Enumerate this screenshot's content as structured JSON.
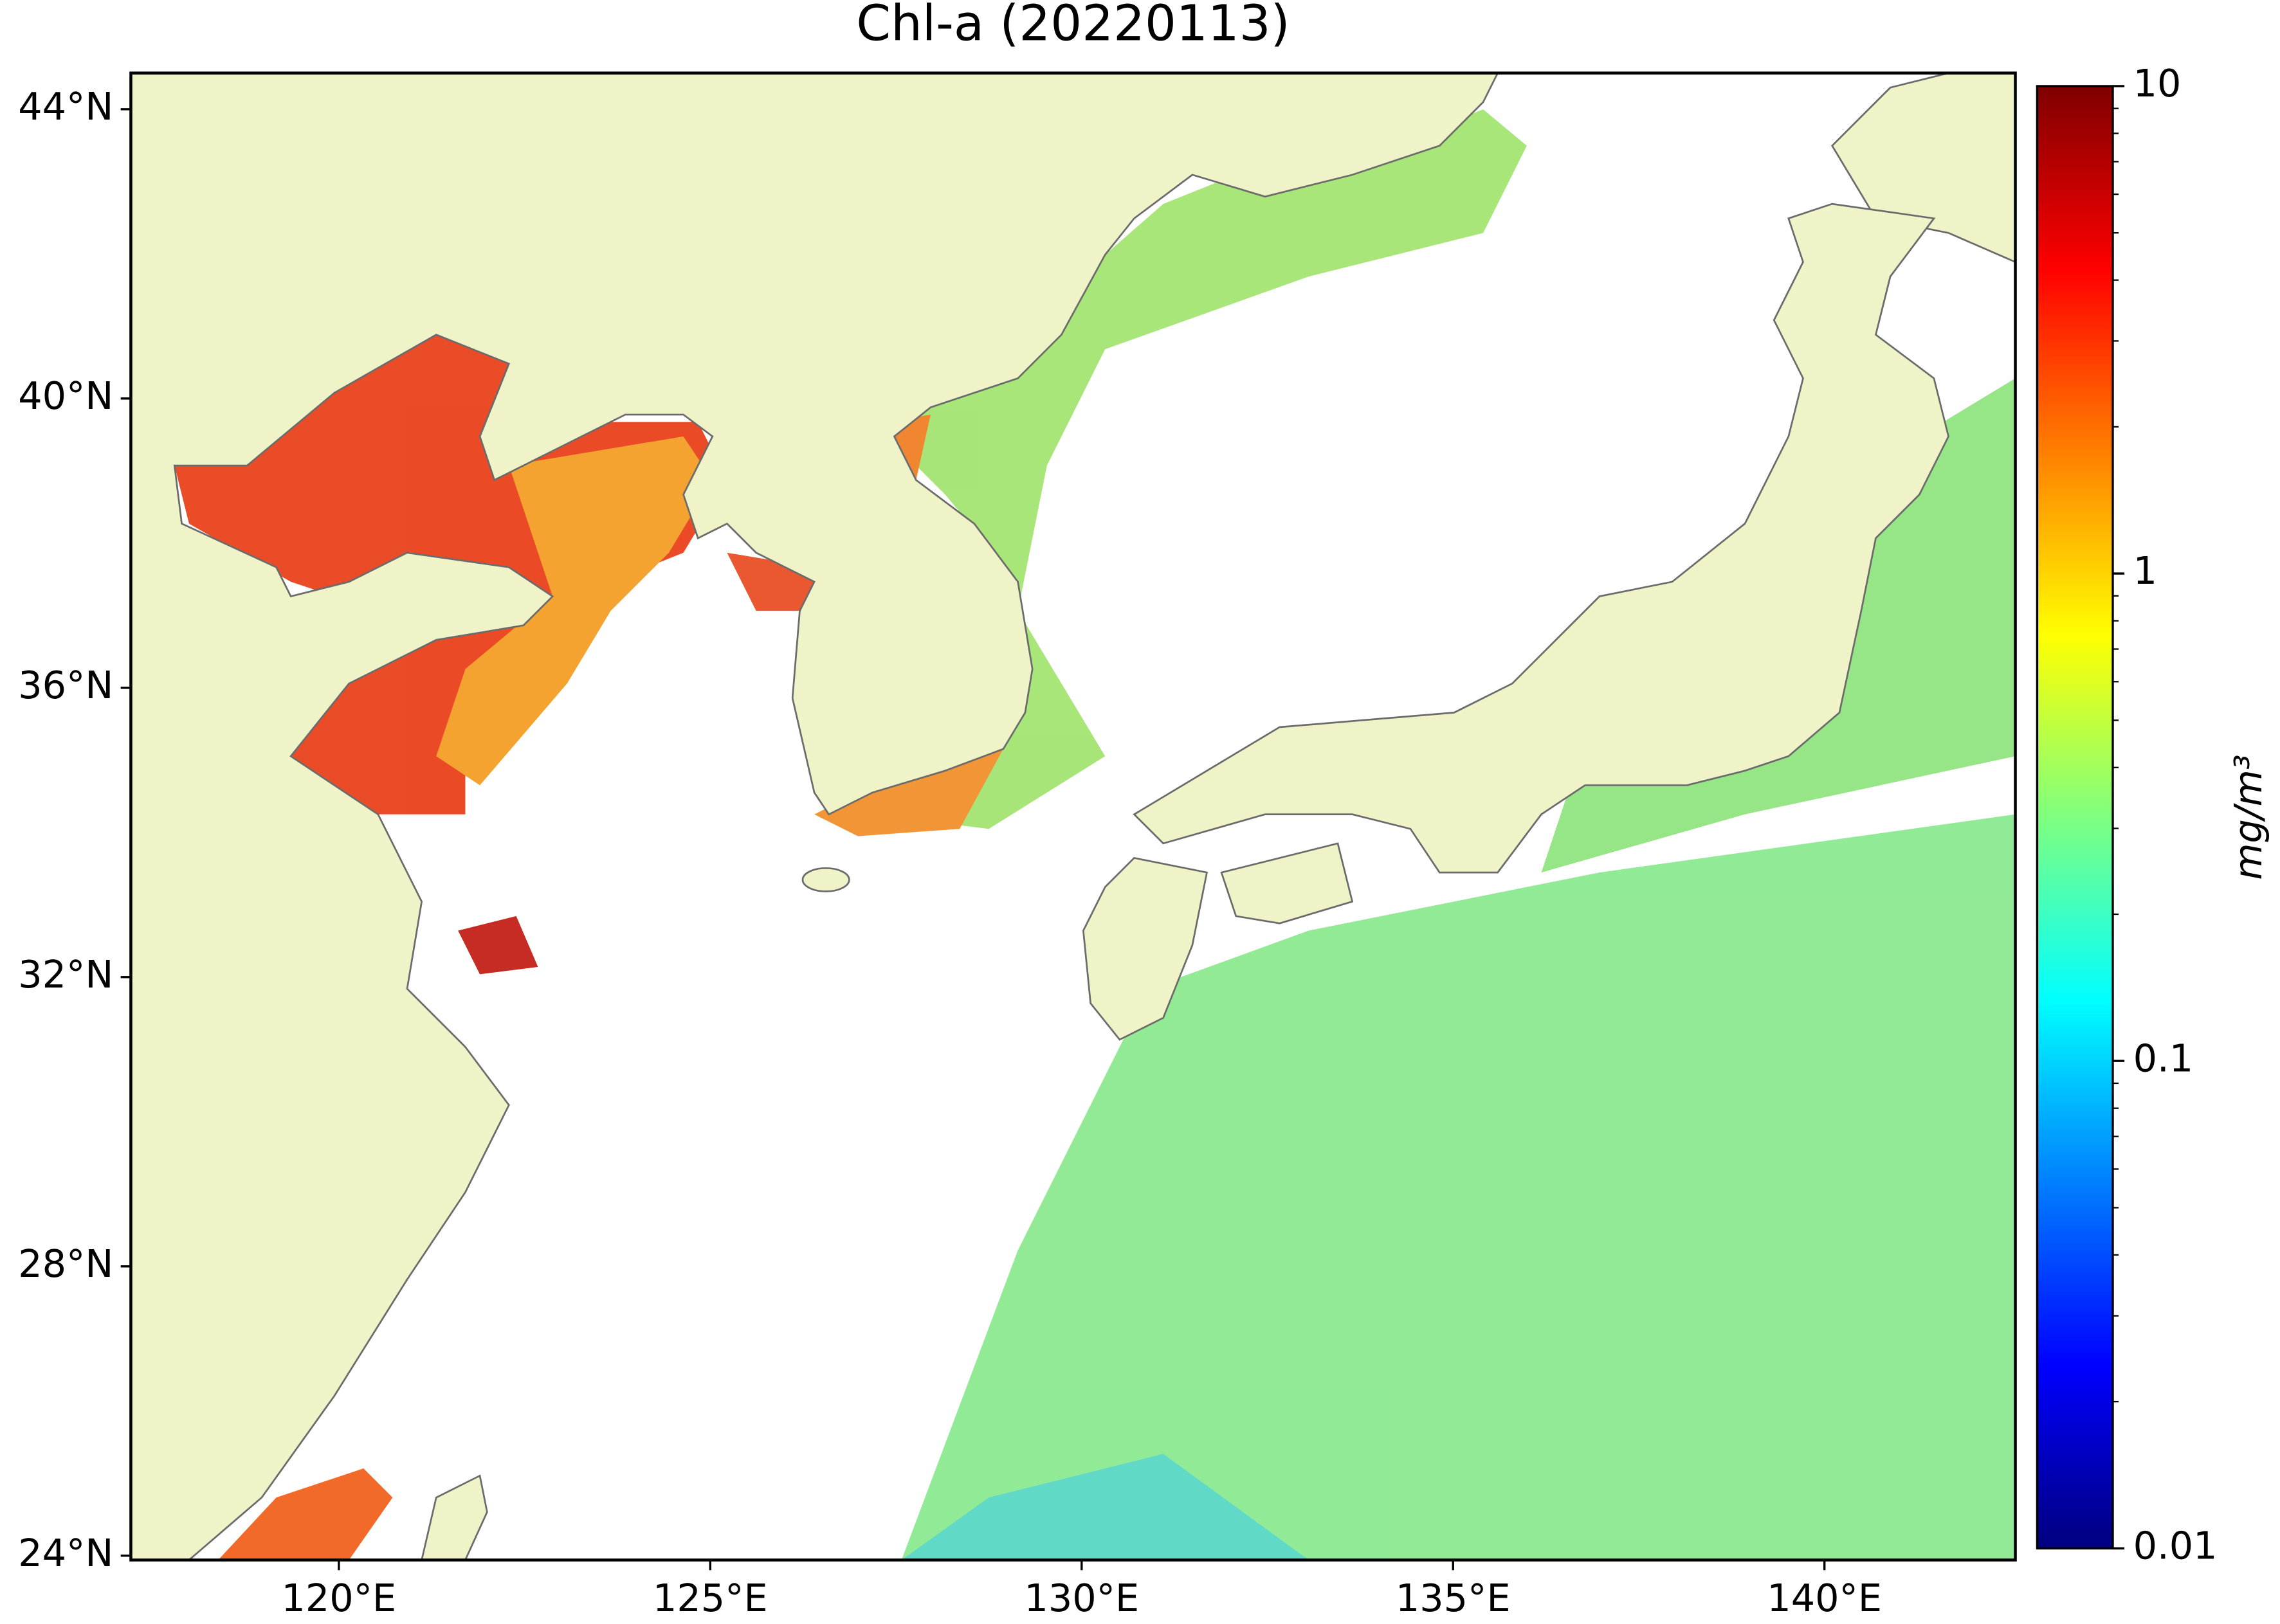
{
  "chart_data": {
    "type": "map",
    "title": "Chl-a (20220113)",
    "xlim": [
      117.2,
      142.57
    ],
    "ylim": [
      23.94,
      44.5
    ],
    "xticks": [
      {
        "value": 120,
        "label": "120°E"
      },
      {
        "value": 125,
        "label": "125°E"
      },
      {
        "value": 130,
        "label": "130°E"
      },
      {
        "value": 135,
        "label": "135°E"
      },
      {
        "value": 140,
        "label": "140°E"
      }
    ],
    "yticks": [
      {
        "value": 24,
        "label": "24°N"
      },
      {
        "value": 28,
        "label": "28°N"
      },
      {
        "value": 32,
        "label": "32°N"
      },
      {
        "value": 36,
        "label": "36°N"
      },
      {
        "value": 40,
        "label": "40°N"
      },
      {
        "value": 44,
        "label": "44°N"
      }
    ],
    "land_color": "#eff3c7",
    "colorbar": {
      "label": "mg/m³",
      "scale": "log",
      "colormap": "jet",
      "lim": [
        0.01,
        10
      ],
      "ticks": [
        0.01,
        0.1,
        1,
        10
      ]
    }
  }
}
